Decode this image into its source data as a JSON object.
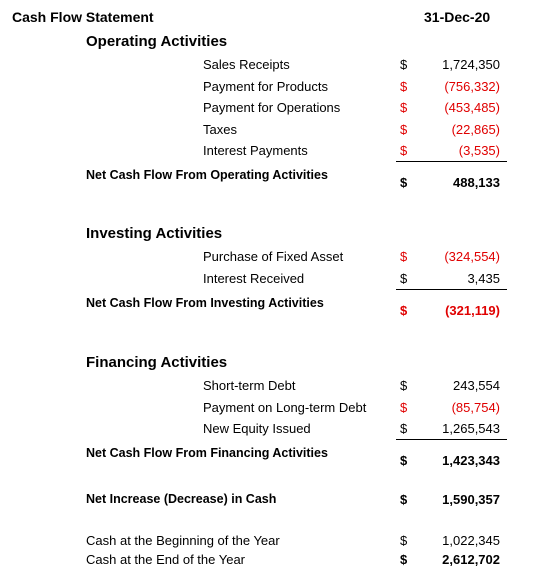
{
  "header": {
    "title": "Cash Flow Statement",
    "date": "31-Dec-20"
  },
  "operating": {
    "heading": "Operating Activities",
    "rows": [
      {
        "label": "Sales Receipts",
        "currency": "$",
        "value": "1,724,350",
        "negative": false
      },
      {
        "label": "Payment for Products",
        "currency": "$",
        "value": "(756,332)",
        "negative": true
      },
      {
        "label": "Payment for Operations",
        "currency": "$",
        "value": "(453,485)",
        "negative": true
      },
      {
        "label": "Taxes",
        "currency": "$",
        "value": "(22,865)",
        "negative": true
      },
      {
        "label": "Interest Payments",
        "currency": "$",
        "value": "(3,535)",
        "negative": true
      }
    ],
    "net_label": "Net Cash Flow From Operating Activities",
    "net_currency": "$",
    "net_value": "488,133"
  },
  "investing": {
    "heading": "Investing Activities",
    "rows": [
      {
        "label": "Purchase of Fixed Asset",
        "currency": "$",
        "value": "(324,554)",
        "negative": true
      },
      {
        "label": "Interest Received",
        "currency": "$",
        "value": "3,435",
        "negative": false
      }
    ],
    "net_label": "Net Cash Flow From Investing Activities",
    "net_currency": "$",
    "net_value": "(321,119)"
  },
  "financing": {
    "heading": "Financing Activities",
    "rows": [
      {
        "label": "Short-term Debt",
        "currency": "$",
        "value": "243,554",
        "negative": false
      },
      {
        "label": "Payment on Long-term Debt",
        "currency": "$",
        "value": "(85,754)",
        "negative": true
      },
      {
        "label": "New Equity Issued",
        "currency": "$",
        "value": "1,265,543",
        "negative": false
      }
    ],
    "net_label": "Net Cash Flow From Financing Activities",
    "net_currency": "$",
    "net_value": "1,423,343"
  },
  "net_increase": {
    "label": "Net Increase (Decrease) in Cash",
    "currency": "$",
    "value": "1,590,357"
  },
  "cash_begin": {
    "label": "Cash at the Beginning of the Year",
    "currency": "$",
    "value": "1,022,345"
  },
  "cash_end": {
    "label": "Cash at the End of the Year",
    "currency": "$",
    "value": "2,612,702"
  },
  "colors": {
    "negative": "#e00000",
    "text": "#000000"
  }
}
